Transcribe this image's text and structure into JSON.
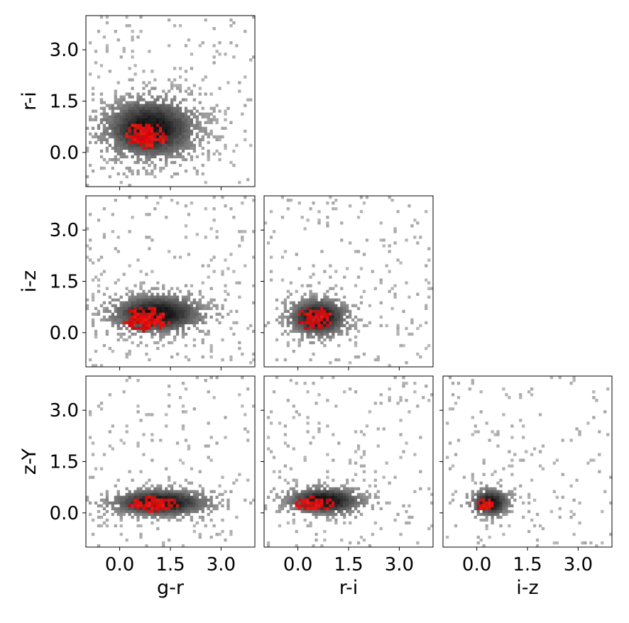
{
  "chart_data": {
    "type": "heatmap",
    "title": "",
    "variables": [
      "g-r",
      "r-i",
      "i-z",
      "z-Y"
    ],
    "axis_range": [
      -1.0,
      4.0
    ],
    "tick_values": [
      0.0,
      1.5,
      3.0
    ],
    "tick_labels": [
      "0.0",
      "1.5",
      "3.0"
    ],
    "grid": false,
    "legend": "none",
    "colors": {
      "density_background": "#9e9e9e",
      "density_core": "#141414",
      "highlight_sample": "#e02020",
      "axes_frame": "#000000"
    },
    "series": [
      {
        "style": "grey 2D histogram (full sample)"
      },
      {
        "style": "red 2D histogram (selected subsample)"
      }
    ],
    "panels": [
      {
        "x": "g-r",
        "y": "r-i",
        "row": 0,
        "col": 0,
        "gray_peak": [
          0.9,
          0.7
        ],
        "gray_spread": [
          0.85,
          0.55
        ],
        "red_peak": [
          0.8,
          0.5
        ],
        "red_spread": [
          0.45,
          0.3
        ]
      },
      {
        "x": "g-r",
        "y": "i-z",
        "row": 1,
        "col": 0,
        "gray_peak": [
          1.1,
          0.55
        ],
        "gray_spread": [
          0.85,
          0.35
        ],
        "red_peak": [
          0.8,
          0.4
        ],
        "red_spread": [
          0.5,
          0.25
        ]
      },
      {
        "x": "r-i",
        "y": "i-z",
        "row": 1,
        "col": 1,
        "gray_peak": [
          0.6,
          0.45
        ],
        "gray_spread": [
          0.55,
          0.35
        ],
        "red_peak": [
          0.5,
          0.4
        ],
        "red_spread": [
          0.35,
          0.25
        ]
      },
      {
        "x": "g-r",
        "y": "z-Y",
        "row": 2,
        "col": 0,
        "gray_peak": [
          1.2,
          0.3
        ],
        "gray_spread": [
          0.9,
          0.25
        ],
        "red_peak": [
          1.0,
          0.25
        ],
        "red_spread": [
          0.55,
          0.15
        ]
      },
      {
        "x": "r-i",
        "y": "z-Y",
        "row": 2,
        "col": 1,
        "gray_peak": [
          0.8,
          0.35
        ],
        "gray_spread": [
          0.7,
          0.25
        ],
        "red_peak": [
          0.5,
          0.25
        ],
        "red_spread": [
          0.4,
          0.15
        ]
      },
      {
        "x": "i-z",
        "y": "z-Y",
        "row": 2,
        "col": 2,
        "gray_peak": [
          0.4,
          0.3
        ],
        "gray_spread": [
          0.35,
          0.25
        ],
        "red_peak": [
          0.25,
          0.2
        ],
        "red_spread": [
          0.2,
          0.15
        ]
      }
    ],
    "xlabels": [
      "g-r",
      "r-i",
      "i-z"
    ],
    "ylabels": [
      "r-i",
      "i-z",
      "z-Y"
    ]
  }
}
